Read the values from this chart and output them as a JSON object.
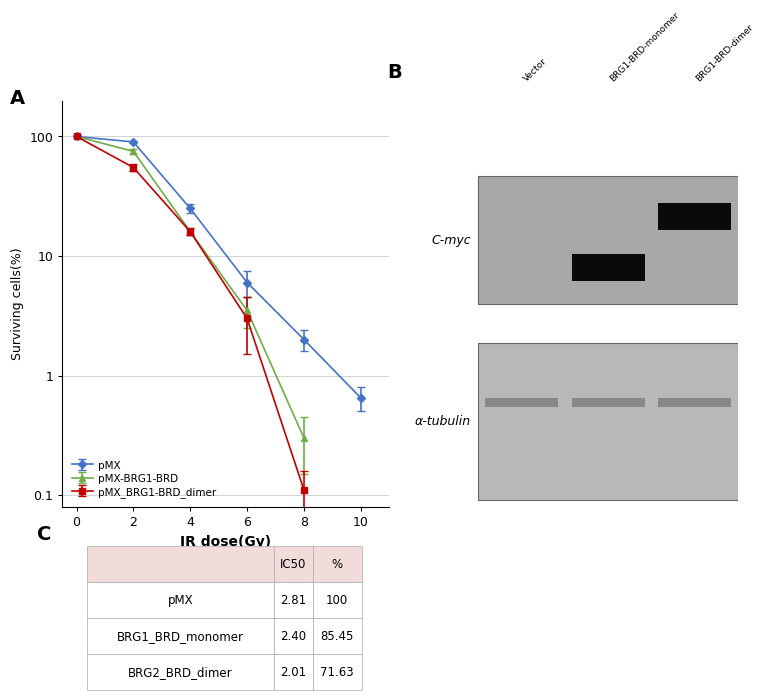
{
  "panel_A": {
    "x": [
      0,
      2,
      4,
      6,
      8,
      10
    ],
    "pMX_y": [
      100,
      90,
      25,
      6.0,
      2.0,
      0.65
    ],
    "pMX_yerr": [
      0,
      2,
      2,
      1.5,
      0.4,
      0.15
    ],
    "monomer_y": [
      100,
      75,
      16,
      3.5,
      0.3
    ],
    "monomer_yerr": [
      0,
      3,
      1,
      1.0,
      0.15
    ],
    "dimer_y": [
      100,
      55,
      16,
      3.0,
      0.11
    ],
    "dimer_yerr": [
      0,
      4,
      1,
      1.5,
      0.05
    ],
    "xlabel": "IR dose(Gy)",
    "ylabel": "Surviving cells(%)",
    "legend": [
      "pMX",
      "pMX-BRG1-BRD",
      "pMX_BRG1-BRD_dimer"
    ],
    "colors": [
      "#4472C4",
      "#70AD47",
      "#C00000"
    ],
    "markers": [
      "D",
      "^",
      "s"
    ],
    "xticks": [
      0,
      2,
      4,
      6,
      8,
      10
    ],
    "ylim": [
      0.08,
      200
    ],
    "yticks": [
      0.1,
      1,
      10,
      100
    ],
    "ytick_labels": [
      "0.1",
      "1",
      "10",
      "100"
    ]
  },
  "panel_C": {
    "header": [
      "",
      "IC50",
      "%"
    ],
    "rows": [
      [
        "pMX",
        "2.81",
        "100"
      ],
      [
        "BRG1_BRD_monomer",
        "2.40",
        "85.45"
      ],
      [
        "BRG2_BRD_dimer",
        "2.01",
        "71.63"
      ]
    ],
    "header_bg": "#F2DCDB",
    "cell_bg": "#FFFFFF",
    "border_color": "#AAAAAA"
  },
  "panel_B": {
    "col_labels": [
      "Vector",
      "BRG1-BRD-monomer",
      "BRG1-BRD-dimer"
    ],
    "row_labels": [
      "C-myc",
      "α-tubulin"
    ],
    "gel_bg_top": "#A8A8A8",
    "gel_bg_bot": "#B8B8B8",
    "band_dark": "#0A0A0A",
    "band_faint": "#888888"
  }
}
